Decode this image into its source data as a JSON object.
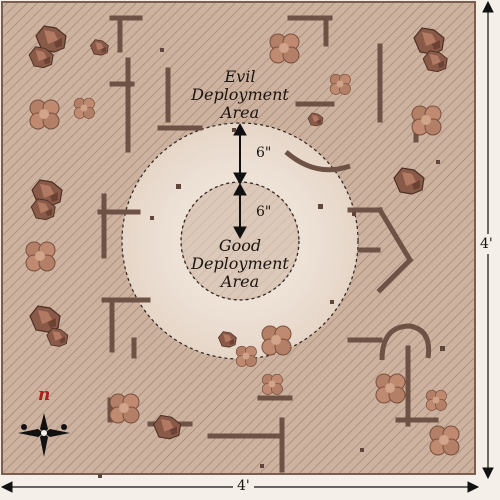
{
  "deployment": {
    "evil": {
      "line1": "Evil",
      "line2": "Deployment",
      "line3": "Area"
    },
    "good": {
      "line1": "Good",
      "line2": "Deployment",
      "line3": "Area"
    },
    "outer_gap": "6\"",
    "inner_gap": "6\""
  },
  "board": {
    "width_label": "4'",
    "height_label": "4'"
  },
  "compass": {
    "north_label": "n"
  },
  "colors": {
    "board": "#cdb29f",
    "hatch": "#9d7f6e",
    "circle_fill": "#efe5da",
    "terrain_dark": "#7a5f50",
    "rock": "#8a5a48",
    "bush": "#b37f66"
  }
}
